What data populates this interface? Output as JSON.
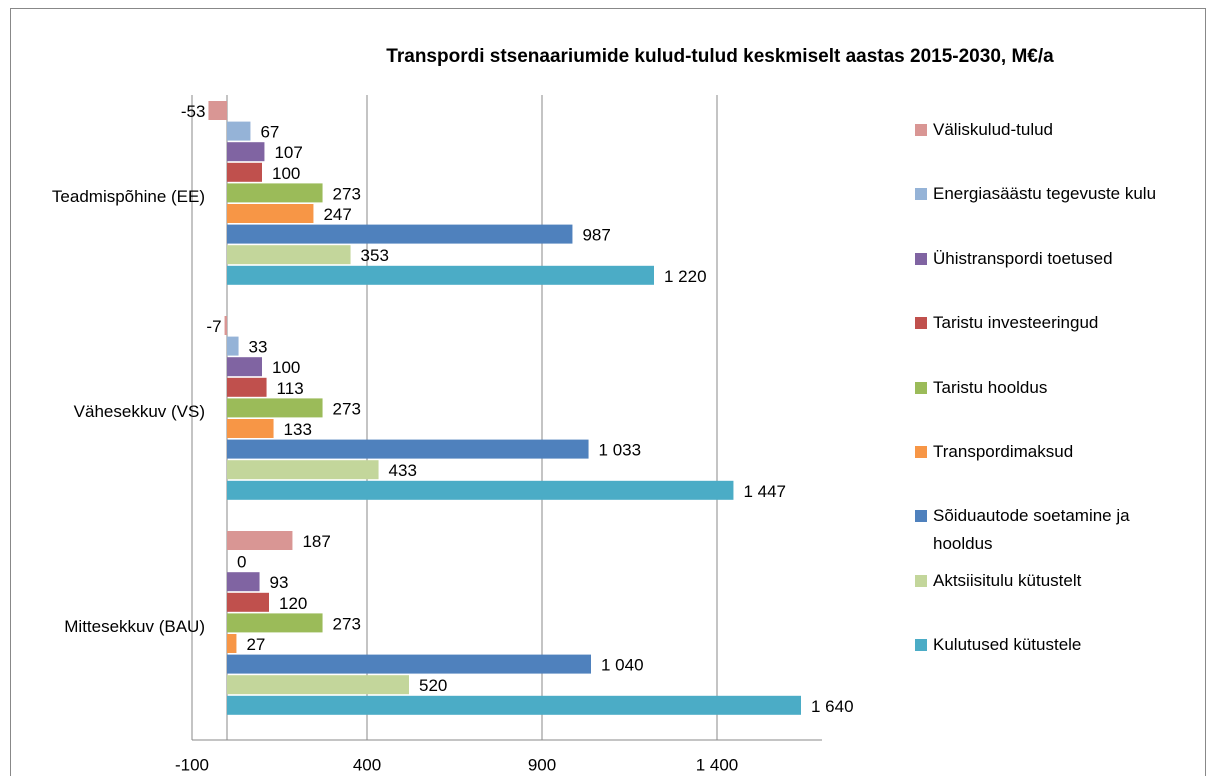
{
  "chart_data": {
    "type": "bar",
    "orientation": "horizontal",
    "title": "Transpordi stsenaariumide kulud-tulud keskmiselt aastas 2015-2030, M€/a",
    "categories": [
      "Teadmispõhine (EE)",
      "Vähesekkuv (VS)",
      "Mittesekkuv (BAU)"
    ],
    "series": [
      {
        "name": "Väliskulud-tulud",
        "color": "#d99694",
        "values": [
          -53,
          -7,
          187
        ]
      },
      {
        "name": "Energiasäästu tegevuste kulu",
        "color": "#95b3d7",
        "values": [
          67,
          33,
          0
        ]
      },
      {
        "name": "Ühistranspordi toetused",
        "color": "#8064a2",
        "values": [
          107,
          100,
          93
        ]
      },
      {
        "name": "Taristu investeeringud",
        "color": "#c0504d",
        "values": [
          100,
          113,
          120
        ]
      },
      {
        "name": "Taristu hooldus",
        "color": "#9bbb59",
        "values": [
          273,
          273,
          273
        ]
      },
      {
        "name": "Transpordimaksud",
        "color": "#f79646",
        "values": [
          247,
          133,
          27
        ]
      },
      {
        "name": "Sõiduautode soetamine ja hooldus",
        "color": "#4f81bd",
        "values": [
          987,
          1033,
          1040
        ],
        "value_labels": [
          "987",
          "1 033",
          "1 040"
        ]
      },
      {
        "name": "Aktsiisitulu kütustelt",
        "color": "#c3d69b",
        "values": [
          353,
          433,
          520
        ]
      },
      {
        "name": "Kulutused kütustele",
        "color": "#4bacc6",
        "values": [
          1220,
          1447,
          1640
        ],
        "value_labels": [
          "1 220",
          "1 447",
          "1 640"
        ]
      }
    ],
    "xlim": [
      -100,
      1700
    ],
    "xticks": [
      -100,
      400,
      900,
      {
        "value": 1400,
        "label": "1 400"
      }
    ],
    "grid": true,
    "legend": "right"
  }
}
